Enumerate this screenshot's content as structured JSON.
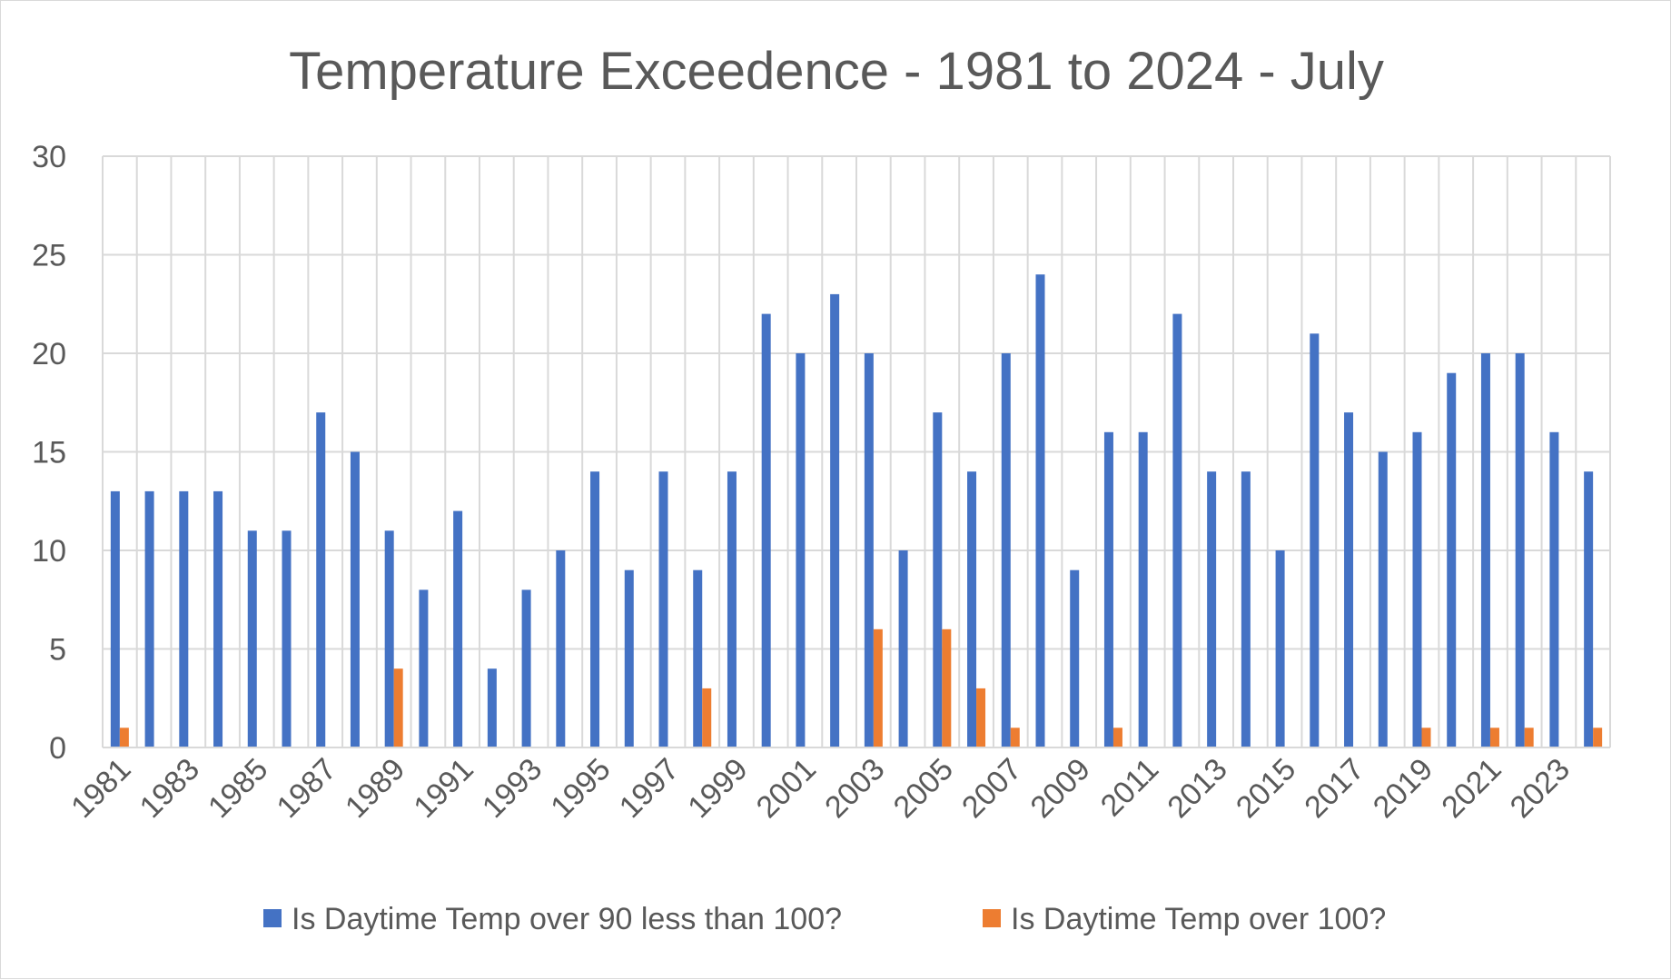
{
  "chart_data": {
    "type": "bar",
    "title": "Temperature Exceedence - 1981 to 2024 - July",
    "xlabel": "",
    "ylabel": "",
    "ylim": [
      0,
      30
    ],
    "yticks": [
      0,
      5,
      10,
      15,
      20,
      25,
      30
    ],
    "grid": true,
    "legend_position": "bottom",
    "categories": [
      "1981",
      "1982",
      "1983",
      "1984",
      "1985",
      "1986",
      "1987",
      "1988",
      "1989",
      "1990",
      "1991",
      "1992",
      "1993",
      "1994",
      "1995",
      "1996",
      "1997",
      "1998",
      "1999",
      "2000",
      "2001",
      "2002",
      "2003",
      "2004",
      "2005",
      "2006",
      "2007",
      "2008",
      "2009",
      "2010",
      "2011",
      "2012",
      "2013",
      "2014",
      "2015",
      "2016",
      "2017",
      "2018",
      "2019",
      "2020",
      "2021",
      "2022",
      "2023",
      "2024"
    ],
    "xtick_labels": [
      "1981",
      "1983",
      "1985",
      "1987",
      "1989",
      "1991",
      "1993",
      "1995",
      "1997",
      "1999",
      "2001",
      "2003",
      "2005",
      "2007",
      "2009",
      "2011",
      "2013",
      "2015",
      "2017",
      "2019",
      "2021",
      "2023"
    ],
    "series": [
      {
        "name": "Is Daytime Temp over 90 less than 100?",
        "color": "#4472c4",
        "values": [
          13,
          13,
          13,
          13,
          11,
          11,
          17,
          15,
          11,
          8,
          12,
          4,
          8,
          10,
          14,
          9,
          14,
          9,
          14,
          22,
          20,
          23,
          20,
          10,
          17,
          14,
          20,
          24,
          9,
          16,
          16,
          22,
          14,
          14,
          10,
          21,
          17,
          15,
          16,
          19,
          20,
          20,
          16,
          14
        ]
      },
      {
        "name": "Is Daytime Temp over 100?",
        "color": "#ed7d31",
        "values": [
          1,
          0,
          0,
          0,
          0,
          0,
          0,
          0,
          4,
          0,
          0,
          0,
          0,
          0,
          0,
          0,
          0,
          3,
          0,
          0,
          0,
          0,
          6,
          0,
          6,
          3,
          1,
          0,
          0,
          1,
          0,
          0,
          0,
          0,
          0,
          0,
          0,
          0,
          1,
          0,
          1,
          1,
          0,
          1
        ]
      }
    ]
  }
}
